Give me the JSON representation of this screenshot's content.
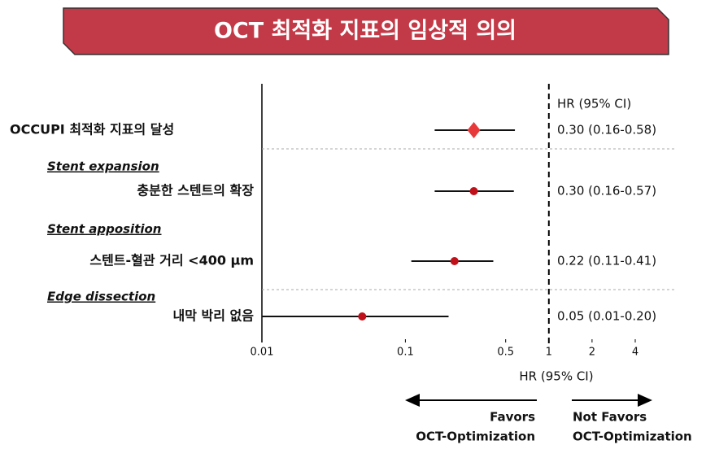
{
  "chart_data": {
    "type": "forest",
    "title": "OCT 최적화 지표의 임상적 의의",
    "column_header": "HR (95% CI)",
    "xlabel": "HR (95% CI)",
    "categories": [
      "OCCUPI 최적화 지표의 달성",
      "충분한 스텐트의 확장",
      "스텐트-혈관 거리 <400 µm",
      "내막 박리 없음"
    ],
    "groups": [
      null,
      "Stent expansion",
      "Stent apposition",
      "Edge dissection"
    ],
    "values": [
      0.3,
      0.3,
      0.22,
      0.05
    ],
    "lower": [
      0.16,
      0.16,
      0.11,
      0.01
    ],
    "upper": [
      0.58,
      0.57,
      0.41,
      0.2
    ],
    "value_labels": [
      "0.30 (0.16-0.58)",
      "0.30 (0.16-0.57)",
      "0.22 (0.11-0.41)",
      "0.05 (0.01-0.20)"
    ],
    "markers": [
      "diamond",
      "circle",
      "circle",
      "circle"
    ],
    "colors": [
      "#e8393a",
      "#c0101a",
      "#c0101a",
      "#c0101a"
    ],
    "xscale": "log",
    "xlim": [
      0.01,
      4
    ],
    "xticks": [
      0.01,
      0.1,
      0.5,
      1,
      2,
      4
    ],
    "reference_line": 1,
    "left_arrow_label": [
      "Favors",
      "OCT-Optimization"
    ],
    "right_arrow_label": [
      "Not Favors",
      "OCT-Optimization"
    ]
  }
}
